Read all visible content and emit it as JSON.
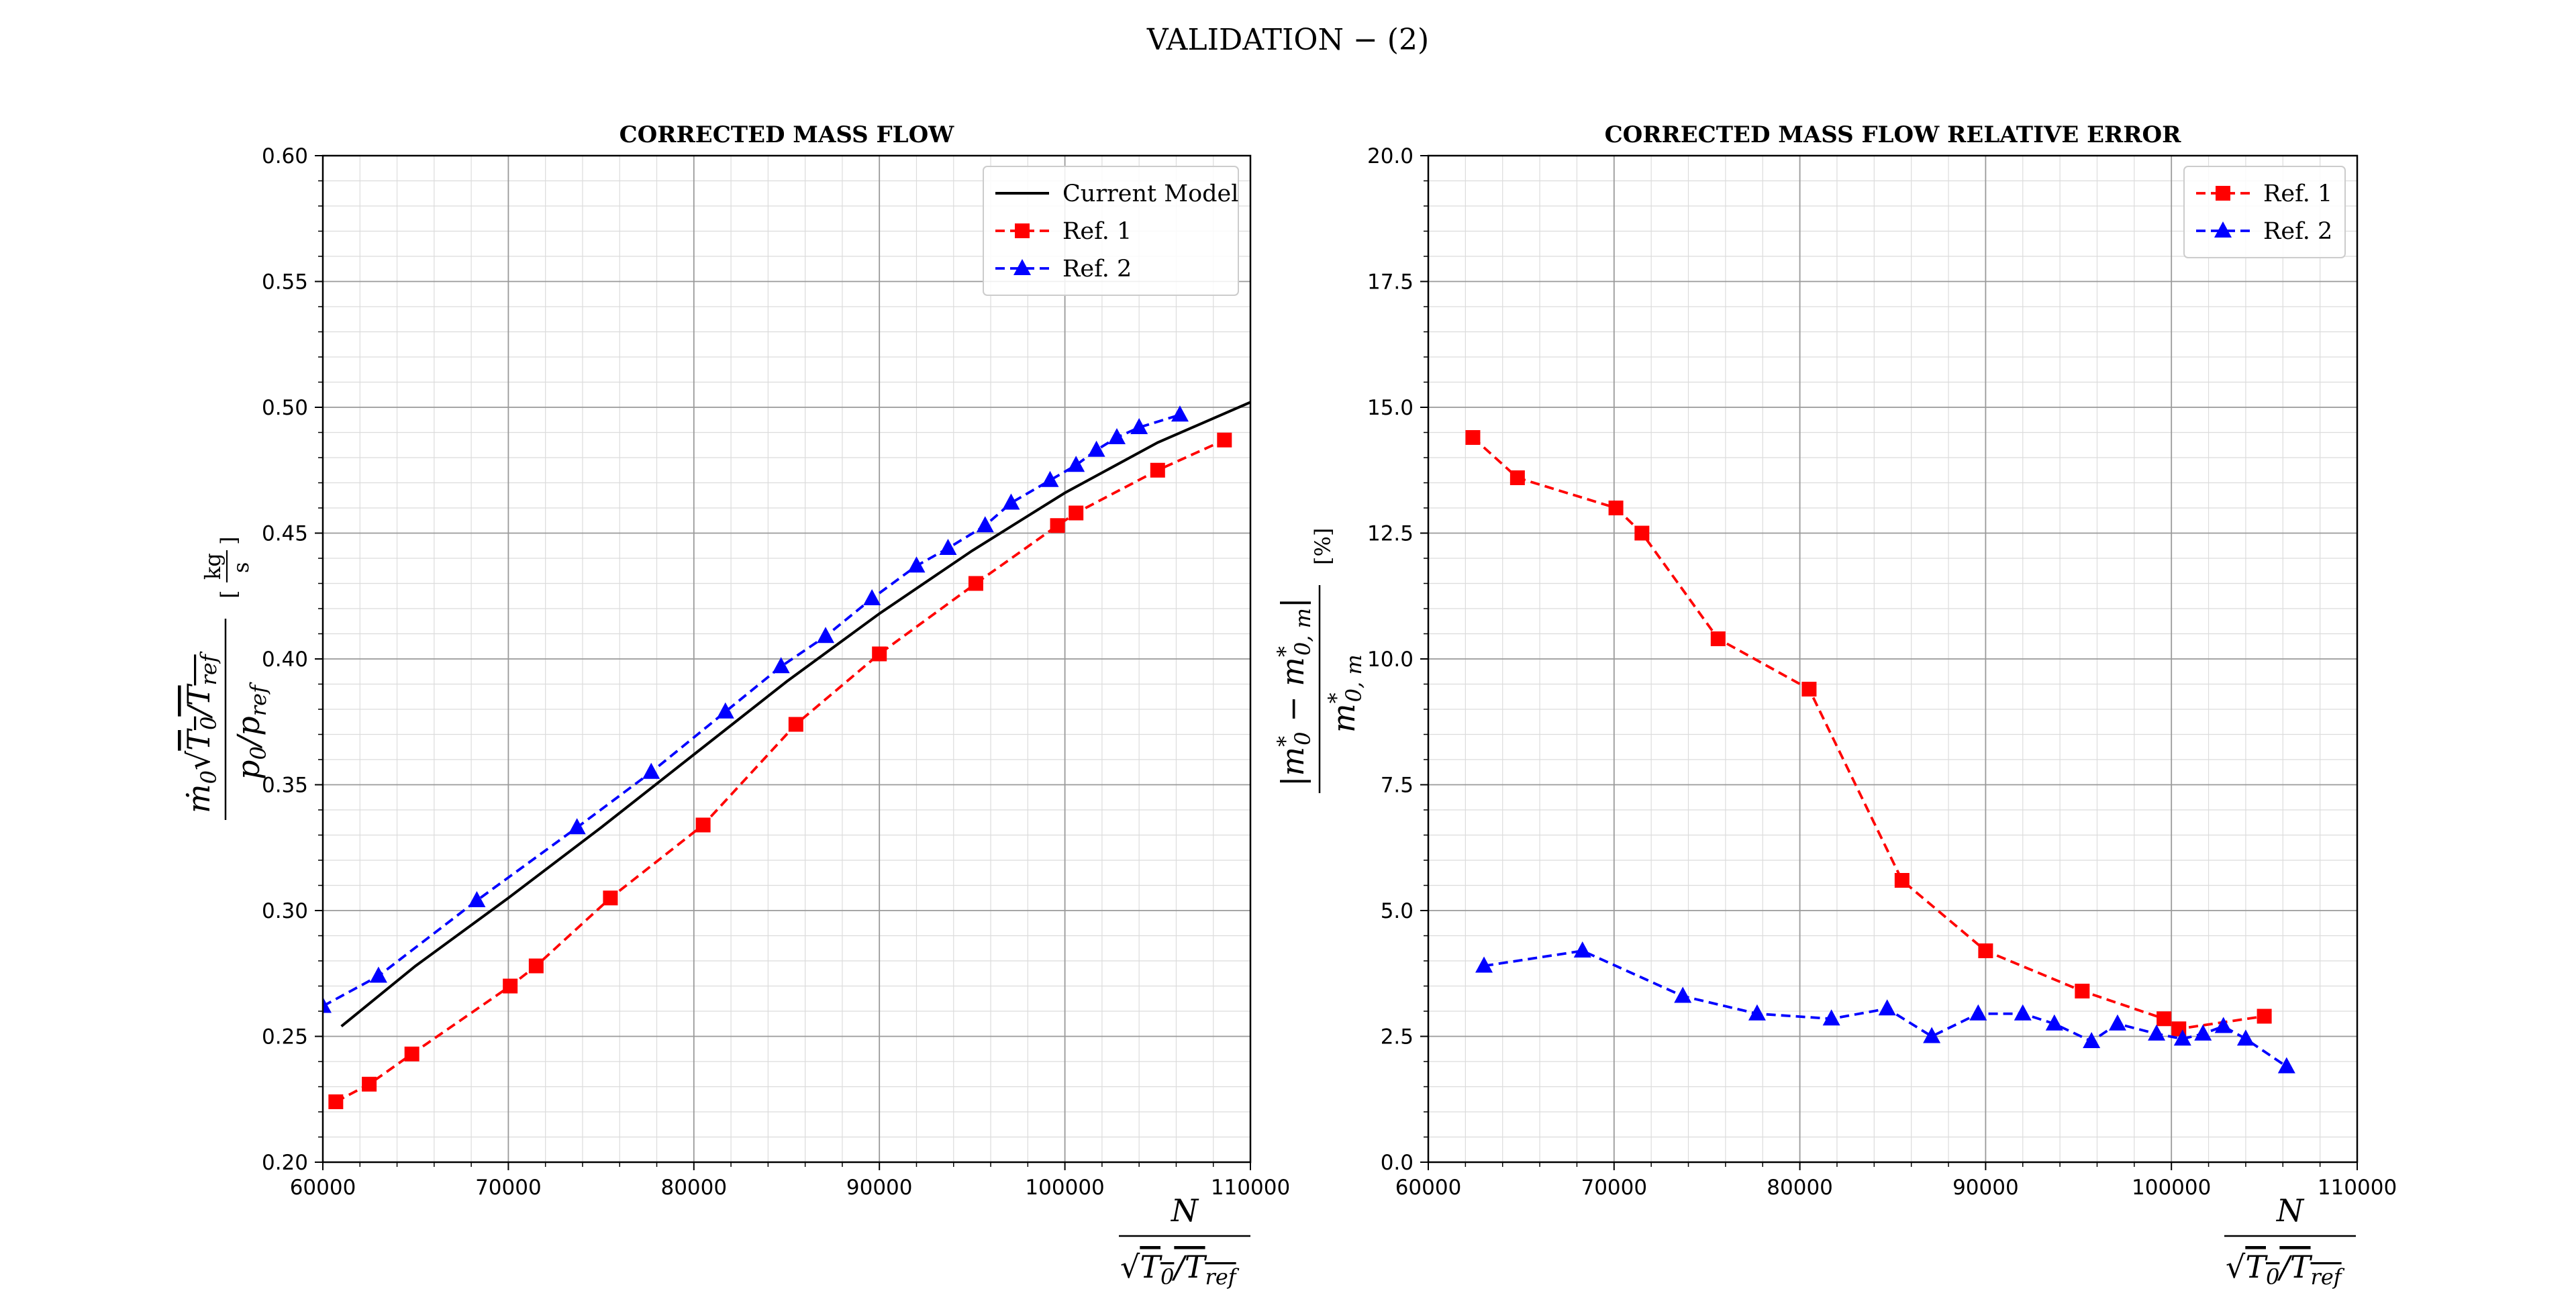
{
  "figure": {
    "title": "VALIDATION − (2)"
  },
  "colors": {
    "current_model": "#000000",
    "ref1": "#ff0000",
    "ref2": "#0000ff"
  },
  "chart_data": [
    {
      "type": "line",
      "title": "CORRECTED MASS FLOW",
      "xlabel": "N / √(T0/Tref)",
      "ylabel": "ṁ0 √(T0/Tref) / (p0/pref)  [kg/s]",
      "xlim": [
        60000,
        110000
      ],
      "ylim": [
        0.2,
        0.6
      ],
      "xticks": [
        60000,
        70000,
        80000,
        90000,
        100000,
        110000
      ],
      "xtick_labels": [
        "60000",
        "70000",
        "80000",
        "90000",
        "100000",
        "110000"
      ],
      "yticks": [
        0.2,
        0.25,
        0.3,
        0.35,
        0.4,
        0.45,
        0.5,
        0.55,
        0.6
      ],
      "ytick_labels": [
        "0.20",
        "0.25",
        "0.30",
        "0.35",
        "0.40",
        "0.45",
        "0.50",
        "0.55",
        "0.60"
      ],
      "grid": true,
      "legend": "top-right",
      "series": [
        {
          "name": "Current Model",
          "style": "solid",
          "marker": "none",
          "color": "#000000",
          "x": [
            61000,
            65000,
            70000,
            75000,
            80000,
            85000,
            90000,
            95000,
            100000,
            105000,
            110000
          ],
          "y": [
            0.254,
            0.278,
            0.305,
            0.333,
            0.362,
            0.391,
            0.418,
            0.443,
            0.466,
            0.486,
            0.502
          ]
        },
        {
          "name": "Ref. 1",
          "style": "dashed",
          "marker": "square",
          "color": "#ff0000",
          "x": [
            60700,
            62500,
            64800,
            70100,
            71500,
            75500,
            80500,
            85500,
            90000,
            95200,
            99600,
            100600,
            105000,
            108600
          ],
          "y": [
            0.224,
            0.231,
            0.243,
            0.27,
            0.278,
            0.305,
            0.334,
            0.374,
            0.402,
            0.43,
            0.453,
            0.458,
            0.475,
            0.487
          ]
        },
        {
          "name": "Ref. 2",
          "style": "dashed",
          "marker": "triangle",
          "color": "#0000ff",
          "x": [
            60000,
            63000,
            68300,
            73700,
            77700,
            81700,
            84700,
            87100,
            89600,
            92000,
            93700,
            95700,
            97100,
            99200,
            100600,
            101700,
            102800,
            104000,
            106200
          ],
          "y": [
            0.262,
            0.274,
            0.304,
            0.333,
            0.355,
            0.379,
            0.397,
            0.409,
            0.424,
            0.437,
            0.444,
            0.453,
            0.462,
            0.471,
            0.477,
            0.483,
            0.488,
            0.492,
            0.497
          ]
        }
      ]
    },
    {
      "type": "line",
      "title": "CORRECTED MASS FLOW RELATIVE ERROR",
      "xlabel": "N / √(T0/Tref)",
      "ylabel": "|m*0 − m*0,m| / m*0,m  [%]",
      "xlim": [
        60000,
        110000
      ],
      "ylim": [
        0.0,
        20.0
      ],
      "xticks": [
        60000,
        70000,
        80000,
        90000,
        100000,
        110000
      ],
      "xtick_labels": [
        "60000",
        "70000",
        "80000",
        "90000",
        "100000",
        "110000"
      ],
      "yticks": [
        0.0,
        2.5,
        5.0,
        7.5,
        10.0,
        12.5,
        15.0,
        17.5,
        20.0
      ],
      "ytick_labels": [
        "0.0",
        "2.5",
        "5.0",
        "7.5",
        "10.0",
        "12.5",
        "15.0",
        "17.5",
        "20.0"
      ],
      "grid": true,
      "legend": "top-right",
      "series": [
        {
          "name": "Ref. 1",
          "style": "dashed",
          "marker": "square",
          "color": "#ff0000",
          "x": [
            62400,
            64800,
            70100,
            71500,
            75600,
            80500,
            85500,
            90000,
            95200,
            99600,
            100400,
            105000
          ],
          "y": [
            14.4,
            13.6,
            13.0,
            12.5,
            10.4,
            9.4,
            5.6,
            4.2,
            3.4,
            2.85,
            2.65,
            2.9
          ]
        },
        {
          "name": "Ref. 2",
          "style": "dashed",
          "marker": "triangle",
          "color": "#0000ff",
          "x": [
            63000,
            68300,
            73700,
            77700,
            81700,
            84700,
            87100,
            89600,
            92000,
            93700,
            95700,
            97100,
            99200,
            100600,
            101700,
            102800,
            104000,
            106200
          ],
          "y": [
            3.9,
            4.2,
            3.3,
            2.95,
            2.85,
            3.05,
            2.5,
            2.95,
            2.95,
            2.75,
            2.4,
            2.75,
            2.55,
            2.45,
            2.55,
            2.7,
            2.45,
            1.9
          ]
        }
      ]
    }
  ]
}
